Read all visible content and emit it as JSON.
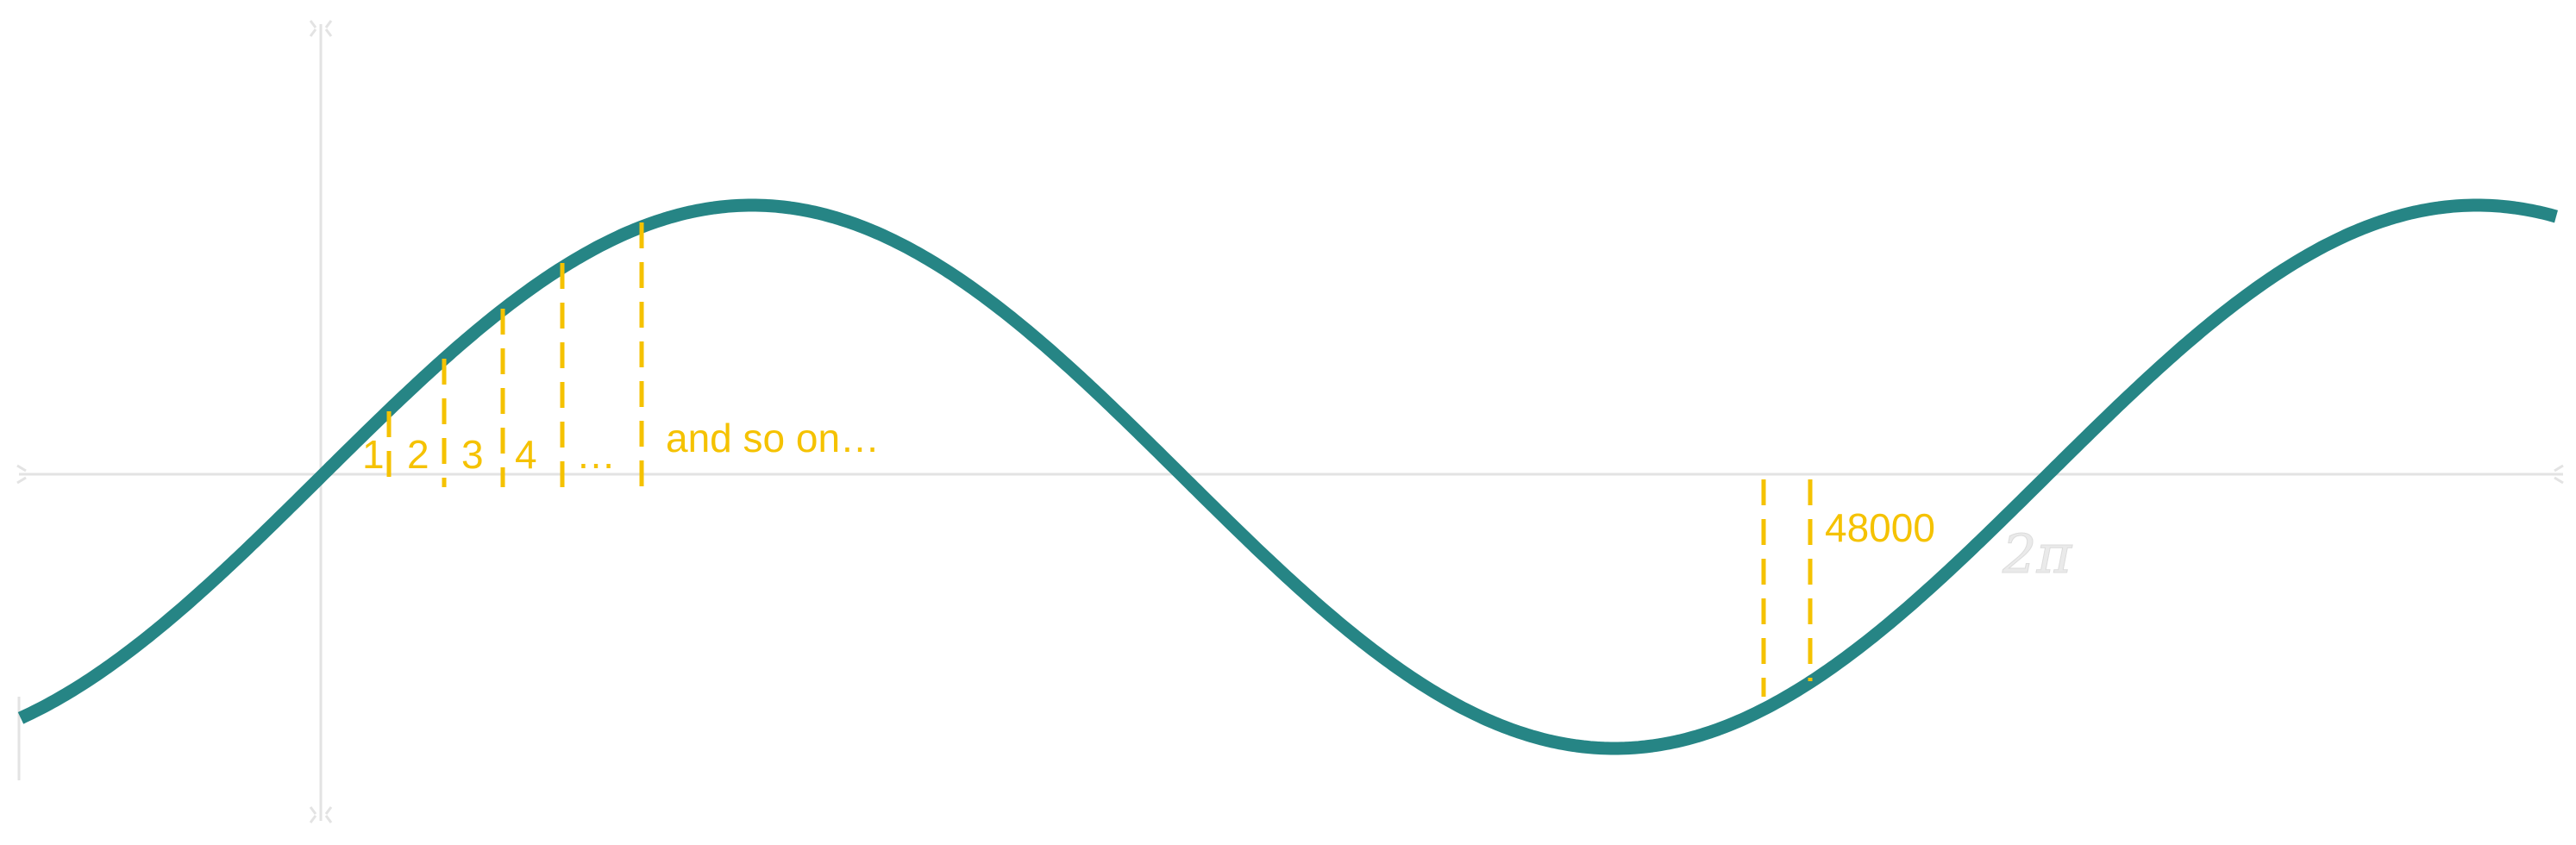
{
  "colors": {
    "wave": "#268585",
    "samples": "#f5c200",
    "axes": "#e3e3e3",
    "period_label": "#eaeaea",
    "background": "#ffffff"
  },
  "sample_labels": [
    "1",
    "2",
    "3",
    "4",
    "…"
  ],
  "continuation_label": "and so on…",
  "last_sample_label": "48000",
  "period_label": "2π"
}
